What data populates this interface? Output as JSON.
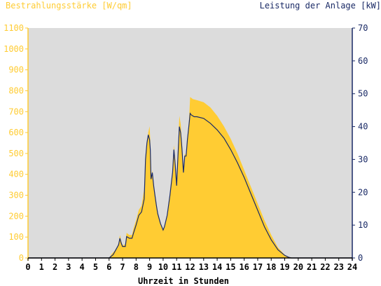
{
  "chart_data": {
    "type": "area",
    "title": "",
    "left_axis_label": "Bestrahlungsstärke [W/qm]",
    "right_axis_label": "Leistung der Anlage [kW]",
    "xlabel": "Uhrzeit in Stunden",
    "xlim": [
      0,
      24
    ],
    "x_ticks": [
      "0",
      "1",
      "2",
      "3",
      "4",
      "5",
      "6",
      "7",
      "8",
      "9",
      "10",
      "11",
      "12",
      "13",
      "14",
      "15",
      "16",
      "17",
      "18",
      "19",
      "20",
      "21",
      "22",
      "23",
      "24"
    ],
    "y_left_lim": [
      0,
      1100
    ],
    "y_left_ticks": [
      "0",
      "100",
      "200",
      "300",
      "400",
      "500",
      "600",
      "700",
      "800",
      "900",
      "1000",
      "1100"
    ],
    "y_right_lim": [
      0,
      70
    ],
    "y_right_ticks": [
      "0",
      "10",
      "20",
      "30",
      "40",
      "50",
      "60",
      "70"
    ],
    "grid": false,
    "background_color": "#dcdcdc",
    "series": [
      {
        "name": "Bestrahlungsstärke [W/qm]",
        "style": "filled-area",
        "axis": "left",
        "color": "#ffcc33",
        "x": [
          0,
          6.0,
          6.2,
          6.5,
          6.7,
          6.8,
          6.9,
          7.0,
          7.2,
          7.3,
          7.5,
          7.7,
          7.8,
          8.0,
          8.2,
          8.4,
          8.6,
          8.7,
          8.8,
          8.9,
          9.0,
          9.05,
          9.1,
          9.2,
          9.3,
          9.4,
          9.5,
          9.6,
          9.8,
          10.0,
          10.1,
          10.3,
          10.5,
          10.7,
          10.8,
          10.9,
          11.0,
          11.1,
          11.2,
          11.3,
          11.4,
          11.5,
          11.6,
          11.7,
          11.8,
          11.9,
          12.0,
          12.1,
          12.2,
          12.5,
          13.0,
          13.5,
          14.0,
          14.5,
          15.0,
          15.5,
          16.0,
          16.5,
          17.0,
          17.5,
          18.0,
          18.5,
          19.0,
          19.3,
          19.5,
          19.7,
          19.8,
          20.0,
          24
        ],
        "y": [
          0,
          0,
          20,
          40,
          70,
          110,
          80,
          60,
          65,
          120,
          110,
          110,
          140,
          180,
          230,
          250,
          330,
          480,
          540,
          600,
          630,
          560,
          380,
          420,
          350,
          300,
          250,
          210,
          160,
          130,
          150,
          200,
          300,
          420,
          540,
          470,
          360,
          520,
          680,
          640,
          540,
          420,
          500,
          490,
          580,
          640,
          770,
          765,
          760,
          755,
          745,
          720,
          680,
          630,
          570,
          500,
          420,
          340,
          260,
          180,
          110,
          50,
          15,
          5,
          2,
          0,
          0,
          0,
          0
        ]
      },
      {
        "name": "Leistung der Anlage [kW]",
        "style": "line",
        "axis": "right",
        "color": "#1a2a66",
        "x": [
          0,
          6.0,
          6.3,
          6.5,
          6.7,
          6.8,
          6.9,
          7.0,
          7.2,
          7.3,
          7.5,
          7.7,
          7.8,
          8.0,
          8.2,
          8.4,
          8.6,
          8.7,
          8.8,
          8.9,
          9.0,
          9.05,
          9.1,
          9.2,
          9.3,
          9.4,
          9.5,
          9.6,
          9.8,
          10.0,
          10.1,
          10.3,
          10.5,
          10.7,
          10.8,
          10.9,
          11.0,
          11.1,
          11.2,
          11.3,
          11.4,
          11.5,
          11.6,
          11.7,
          11.8,
          11.9,
          12.0,
          12.1,
          12.3,
          12.5,
          13.0,
          13.5,
          14.0,
          14.5,
          15.0,
          15.5,
          16.0,
          16.5,
          17.0,
          17.5,
          18.0,
          18.5,
          19.0,
          19.3,
          19.5,
          19.8,
          20.0,
          24
        ],
        "y": [
          0,
          0,
          1,
          2.5,
          4,
          6,
          4.5,
          3.5,
          3.5,
          6.5,
          6,
          6,
          7.5,
          10,
          13,
          14,
          18,
          30,
          35,
          37.5,
          36,
          33,
          24,
          26,
          22,
          19,
          16,
          13.5,
          10.5,
          8.5,
          9.5,
          13,
          19,
          26,
          33,
          28,
          22,
          31,
          40,
          38,
          33,
          26,
          31,
          31,
          36,
          40,
          44,
          43.5,
          43,
          43,
          42.5,
          41,
          39,
          36.5,
          33,
          29,
          24.5,
          19.5,
          14.5,
          9.5,
          5.5,
          2.5,
          0.8,
          0.2,
          0,
          0,
          0,
          0
        ]
      }
    ]
  }
}
